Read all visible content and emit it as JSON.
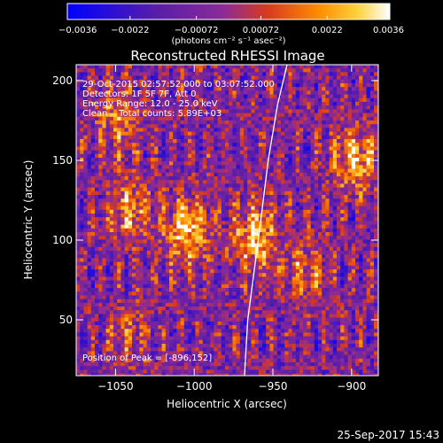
{
  "chart_data": {
    "type": "heatmap",
    "title": "Reconstructed RHESSI Image",
    "xlabel": "Heliocentric X (arcsec)",
    "ylabel": "Heliocentric Y (arcsec)",
    "xlim": [
      -1075,
      -883
    ],
    "ylim": [
      15,
      210
    ],
    "x_ticks": [
      -1050,
      -1000,
      -950,
      -900
    ],
    "x_tick_labels": [
      "−1050",
      "−1000",
      "−950",
      "−900"
    ],
    "y_ticks": [
      50,
      100,
      150,
      200
    ],
    "y_tick_labels": [
      "50",
      "100",
      "150",
      "200"
    ],
    "colorbar": {
      "min": -0.0036,
      "max": 0.0036,
      "ticks": [
        -0.0036,
        -0.0022,
        -0.00072,
        0.00072,
        0.0022,
        0.0036
      ],
      "tick_labels": [
        "−0.0036",
        "−0.0022",
        "−0.00072",
        "0.00072",
        "0.0022",
        "0.0036"
      ],
      "unit_label": "(photons cm⁻² s⁻¹ asec⁻²)",
      "colors": [
        "#0000ff",
        "#5a1ea8",
        "#8a2a9a",
        "#d83a1e",
        "#ff8c00",
        "#ffd23c",
        "#ffffff"
      ]
    },
    "info_lines": [
      "29-Oct-2015 02:57:52.000 to 03:07:52.000",
      "Detectors: 1F 5F 7F, Att 0",
      "Energy Range: 12.0 - 25.0 keV",
      "Clean    Total counts: 5.89E+03"
    ],
    "peak_label": "Position of Peak = [-896,152]",
    "peak_position": [
      -896,
      152
    ],
    "sources": [
      {
        "x": -1005,
        "y": 105,
        "amplitude": 0.0034
      },
      {
        "x": -962,
        "y": 102,
        "amplitude": 0.0032
      },
      {
        "x": -1040,
        "y": 118,
        "amplitude": 0.0026
      },
      {
        "x": -1048,
        "y": 175,
        "amplitude": 0.0022
      },
      {
        "x": -898,
        "y": 150,
        "amplitude": 0.003
      },
      {
        "x": -930,
        "y": 80,
        "amplitude": 0.0018
      },
      {
        "x": -1040,
        "y": 40,
        "amplitude": 0.0015
      }
    ],
    "limb_curve": [
      [
        -968,
        15
      ],
      [
        -966,
        50
      ],
      [
        -962,
        80
      ],
      [
        -958,
        110
      ],
      [
        -953,
        150
      ],
      [
        -947,
        185
      ],
      [
        -941,
        210
      ]
    ]
  },
  "timestamp": "25-Sep-2017 15:43"
}
